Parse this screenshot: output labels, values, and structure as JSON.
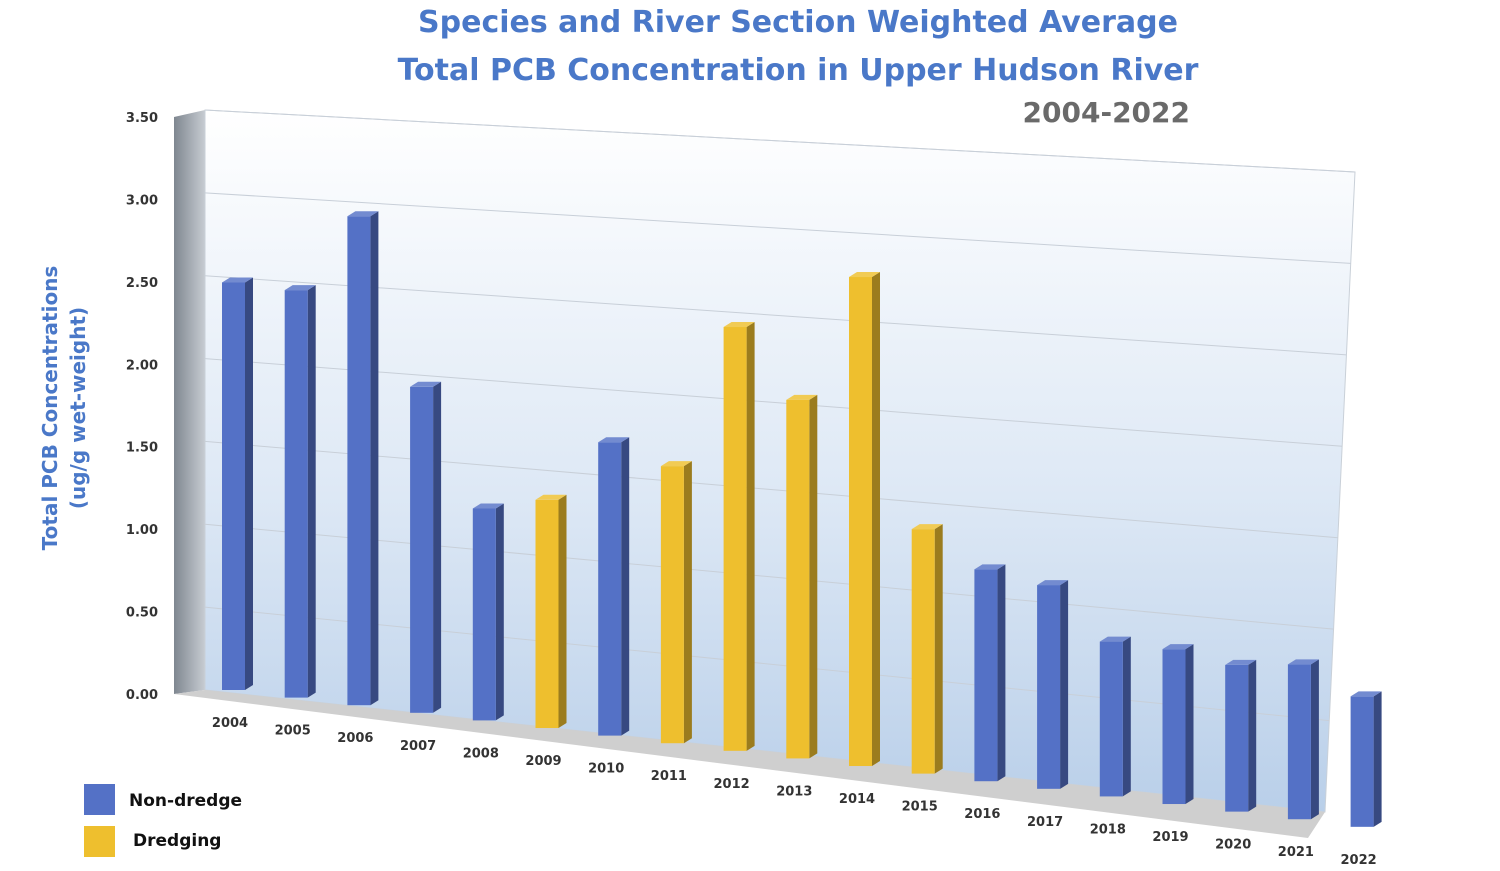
{
  "chart_data": {
    "type": "bar",
    "title_line1": "Species and River Section Weighted Average",
    "title_line2": "Total PCB Concentration in Upper Hudson River",
    "subtitle": "2004-2022",
    "ylabel_line1": "Total PCB Concentrations",
    "ylabel_line2": "(ug/g wet-weight)",
    "xlabel": "",
    "ylim": [
      0,
      3.5
    ],
    "yticks": [
      "0.00",
      "0.50",
      "1.00",
      "1.50",
      "2.00",
      "2.50",
      "3.00",
      "3.50"
    ],
    "categories": [
      "2004",
      "2005",
      "2006",
      "2007",
      "2008",
      "2009",
      "2010",
      "2011",
      "2012",
      "2013",
      "2014",
      "2015",
      "2016",
      "2017",
      "2018",
      "2019",
      "2020",
      "2021",
      "2022"
    ],
    "values": [
      2.5,
      2.5,
      3.0,
      2.0,
      1.3,
      1.4,
      1.8,
      1.7,
      2.6,
      2.2,
      3.0,
      1.5,
      1.3,
      1.25,
      0.95,
      0.95,
      0.9,
      0.95,
      0.8
    ],
    "groups": [
      "Non-dredge",
      "Non-dredge",
      "Non-dredge",
      "Non-dredge",
      "Non-dredge",
      "Dredging",
      "Non-dredge",
      "Dredging",
      "Dredging",
      "Dredging",
      "Dredging",
      "Dredging",
      "Non-dredge",
      "Non-dredge",
      "Non-dredge",
      "Non-dredge",
      "Non-dredge",
      "Non-dredge",
      "Non-dredge"
    ],
    "legend": [
      {
        "name": "Non-dredge",
        "color": "#5471c6"
      },
      {
        "name": "Dredging",
        "color": "#eebf2e"
      }
    ],
    "legend_position": "bottom-left",
    "grid": true
  }
}
